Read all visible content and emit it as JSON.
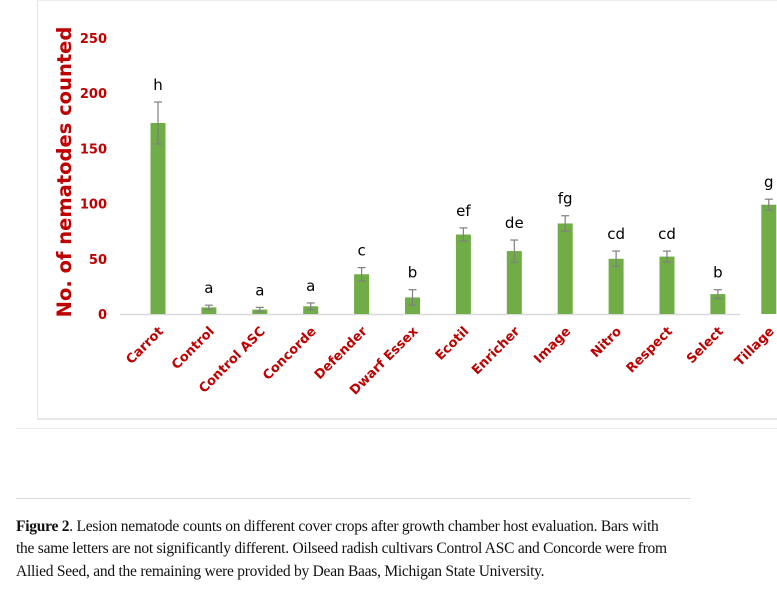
{
  "chart_data": {
    "type": "bar",
    "title": "",
    "xlabel": "",
    "ylabel": "No. of nematodes counted",
    "ylim": [
      0,
      250
    ],
    "yticks": [
      0,
      50,
      100,
      150,
      200,
      250
    ],
    "grid": false,
    "legend": null,
    "categories": [
      "Carrot",
      "Control",
      "Control ASC",
      "Concorde",
      "Defender",
      "Dwarf Essex",
      "Ecotil",
      "Enricher",
      "Image",
      "Nitro",
      "Respect",
      "Select",
      "Tillage"
    ],
    "values": [
      173,
      6,
      4,
      7,
      36,
      15,
      72,
      57,
      82,
      50,
      52,
      18,
      99
    ],
    "error": [
      19,
      2,
      2,
      3,
      6,
      7,
      6,
      10,
      7,
      7,
      5,
      4,
      5
    ],
    "significance_letters": [
      "h",
      "a",
      "a",
      "a",
      "c",
      "b",
      "ef",
      "de",
      "fg",
      "cd",
      "cd",
      "b",
      "g"
    ],
    "colors": {
      "bar": "#70ad47",
      "axis_text": "#c00000",
      "error_bar": "#7f7f7f",
      "letter": "#000000",
      "baseline": "#d9d9d9"
    }
  },
  "caption": {
    "label": "Figure 2",
    "text": ". Lesion nematode counts on different cover crops after growth chamber host evaluation. Bars with the same letters are not significantly different. Oilseed radish cultivars Control ASC and Concorde were from Allied Seed, and the remaining were provided by Dean Baas, Michigan State University."
  }
}
